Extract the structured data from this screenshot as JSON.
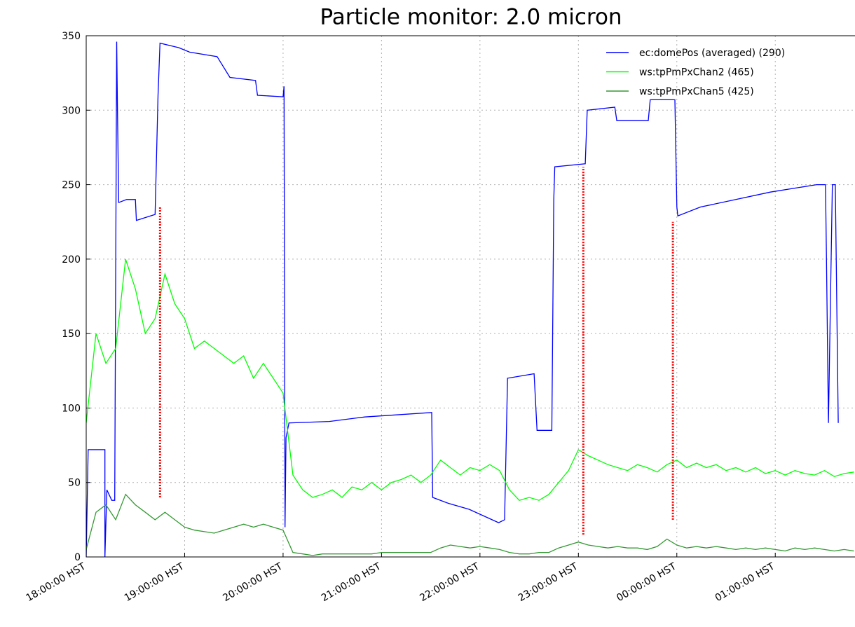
{
  "chart_data": {
    "type": "line",
    "title": "Particle monitor:  2.0 micron",
    "xlim": [
      18,
      25.81
    ],
    "xticks": [
      {
        "value": 18,
        "label": "18:00:00 HST"
      },
      {
        "value": 19,
        "label": "19:00:00 HST"
      },
      {
        "value": 20,
        "label": "20:00:00 HST"
      },
      {
        "value": 21,
        "label": "21:00:00 HST"
      },
      {
        "value": 22,
        "label": "22:00:00 HST"
      },
      {
        "value": 23,
        "label": "23:00:00 HST"
      },
      {
        "value": 24,
        "label": "00:00:00 HST"
      },
      {
        "value": 25,
        "label": "01:00:00 HST"
      }
    ],
    "ylim": [
      0,
      350
    ],
    "yticks": [
      0,
      50,
      100,
      150,
      200,
      250,
      300,
      350
    ],
    "grid": true,
    "legend": "upper right",
    "series": [
      {
        "name": "ec:domePos (averaged) (290)",
        "color": "#0000ff",
        "x": [
          18.0,
          18.02,
          18.19,
          18.19,
          18.21,
          18.26,
          18.29,
          18.31,
          18.32,
          18.33,
          18.41,
          18.5,
          18.51,
          18.7,
          18.73,
          18.75,
          18.94,
          19.05,
          19.33,
          19.46,
          19.72,
          19.74,
          20.0,
          20.01,
          20.02,
          20.03,
          20.06,
          20.47,
          20.83,
          21.51,
          21.52,
          21.68,
          21.89,
          22.19,
          22.25,
          22.28,
          22.55,
          22.58,
          22.73,
          22.75,
          22.76,
          23.07,
          23.09,
          23.37,
          23.39,
          23.71,
          23.73,
          23.98,
          24.0,
          24.01,
          24.24,
          24.6,
          24.95,
          25.42,
          25.51,
          25.52,
          25.54,
          25.58,
          25.61,
          25.64
        ],
        "values": [
          0,
          72,
          72,
          0,
          45,
          38,
          38,
          346,
          290,
          238,
          240,
          240,
          226,
          230,
          310,
          345,
          342,
          339,
          336,
          322,
          320,
          310,
          309,
          316,
          20,
          80,
          90,
          91,
          94,
          97,
          40,
          36,
          32,
          23,
          25,
          120,
          123,
          85,
          85,
          240,
          262,
          264,
          300,
          302,
          293,
          293,
          307,
          307,
          235,
          229,
          235,
          240,
          245,
          250,
          250,
          200,
          90,
          250,
          250,
          90
        ]
      },
      {
        "name": "ws:tpPmPxChan2 (465)",
        "color": "#00ff00",
        "x": [
          18.0,
          18.1,
          18.2,
          18.3,
          18.4,
          18.5,
          18.6,
          18.7,
          18.8,
          18.9,
          19.0,
          19.1,
          19.2,
          19.3,
          19.4,
          19.5,
          19.6,
          19.7,
          19.8,
          19.9,
          20.0,
          20.1,
          20.2,
          20.3,
          20.4,
          20.5,
          20.6,
          20.7,
          20.8,
          20.9,
          21.0,
          21.1,
          21.2,
          21.3,
          21.4,
          21.5,
          21.6,
          21.7,
          21.8,
          21.9,
          22.0,
          22.1,
          22.2,
          22.3,
          22.4,
          22.5,
          22.6,
          22.7,
          22.8,
          22.9,
          23.0,
          23.1,
          23.2,
          23.3,
          23.4,
          23.5,
          23.6,
          23.7,
          23.8,
          23.9,
          24.0,
          24.1,
          24.2,
          24.3,
          24.4,
          24.5,
          24.6,
          24.7,
          24.8,
          24.9,
          25.0,
          25.1,
          25.2,
          25.3,
          25.4,
          25.5,
          25.6,
          25.7,
          25.8
        ],
        "values": [
          90,
          150,
          130,
          140,
          200,
          180,
          150,
          160,
          190,
          170,
          160,
          140,
          145,
          140,
          135,
          130,
          135,
          120,
          130,
          120,
          110,
          55,
          45,
          40,
          42,
          45,
          40,
          47,
          45,
          50,
          45,
          50,
          52,
          55,
          50,
          55,
          65,
          60,
          55,
          60,
          58,
          62,
          58,
          45,
          38,
          40,
          38,
          42,
          50,
          58,
          72,
          68,
          65,
          62,
          60,
          58,
          62,
          60,
          57,
          62,
          65,
          60,
          63,
          60,
          62,
          58,
          60,
          57,
          60,
          56,
          58,
          55,
          58,
          56,
          55,
          58,
          54,
          56,
          57
        ]
      },
      {
        "name": "ws:tpPmPxChan5 (425)",
        "color": "#339933",
        "x": [
          18.0,
          18.1,
          18.2,
          18.3,
          18.4,
          18.5,
          18.6,
          18.7,
          18.8,
          18.9,
          19.0,
          19.1,
          19.2,
          19.3,
          19.4,
          19.5,
          19.6,
          19.7,
          19.8,
          19.9,
          20.0,
          20.1,
          20.2,
          20.3,
          20.4,
          20.5,
          20.6,
          20.7,
          20.8,
          20.9,
          21.0,
          21.1,
          21.2,
          21.3,
          21.4,
          21.5,
          21.6,
          21.7,
          21.8,
          21.9,
          22.0,
          22.1,
          22.2,
          22.3,
          22.4,
          22.5,
          22.6,
          22.7,
          22.8,
          22.9,
          23.0,
          23.1,
          23.2,
          23.3,
          23.4,
          23.5,
          23.6,
          23.7,
          23.8,
          23.9,
          24.0,
          24.1,
          24.2,
          24.3,
          24.4,
          24.5,
          24.6,
          24.7,
          24.8,
          24.9,
          25.0,
          25.1,
          25.2,
          25.3,
          25.4,
          25.5,
          25.6,
          25.7,
          25.8
        ],
        "values": [
          5,
          30,
          35,
          25,
          42,
          35,
          30,
          25,
          30,
          25,
          20,
          18,
          17,
          16,
          18,
          20,
          22,
          20,
          22,
          20,
          18,
          3,
          2,
          1,
          2,
          2,
          2,
          2,
          2,
          2,
          3,
          3,
          3,
          3,
          3,
          3,
          6,
          8,
          7,
          6,
          7,
          6,
          5,
          3,
          2,
          2,
          3,
          3,
          6,
          8,
          10,
          8,
          7,
          6,
          7,
          6,
          6,
          5,
          7,
          12,
          8,
          6,
          7,
          6,
          7,
          6,
          5,
          6,
          5,
          6,
          5,
          4,
          6,
          5,
          6,
          5,
          4,
          5,
          4
        ]
      }
    ],
    "vlines": [
      {
        "x": 18.75,
        "ymin": 40,
        "ymax": 235,
        "color": "#ff0000"
      },
      {
        "x": 23.05,
        "ymin": 15,
        "ymax": 262,
        "color": "#ff0000"
      },
      {
        "x": 23.96,
        "ymin": 25,
        "ymax": 225,
        "color": "#ff0000"
      }
    ]
  }
}
